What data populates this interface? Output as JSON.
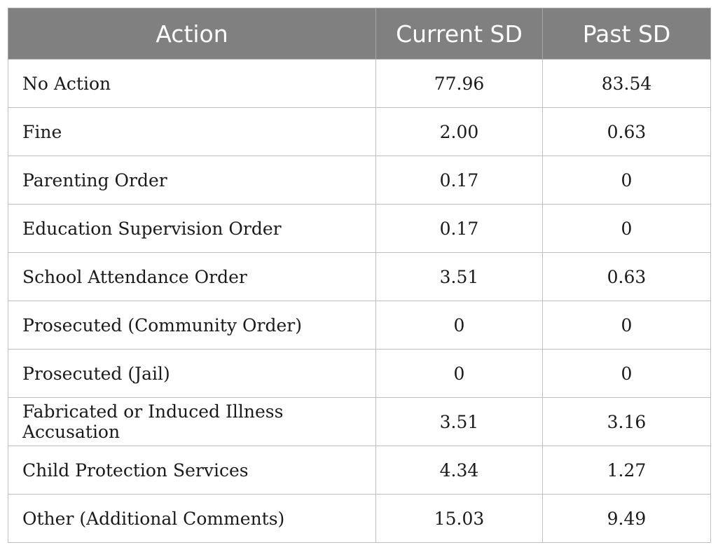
{
  "table": {
    "headers": [
      "Action",
      "Current SD",
      "Past SD"
    ],
    "rows": [
      {
        "action": "No Action",
        "current_sd": "77.96",
        "past_sd": "83.54"
      },
      {
        "action": "Fine",
        "current_sd": "2.00",
        "past_sd": "0.63"
      },
      {
        "action": "Parenting Order",
        "current_sd": "0.17",
        "past_sd": "0"
      },
      {
        "action": "Education Supervision Order",
        "current_sd": "0.17",
        "past_sd": "0"
      },
      {
        "action": "School Attendance Order",
        "current_sd": "3.51",
        "past_sd": "0.63"
      },
      {
        "action": "Prosecuted (Community Order)",
        "current_sd": "0",
        "past_sd": "0"
      },
      {
        "action": "Prosecuted (Jail)",
        "current_sd": "0",
        "past_sd": "0"
      },
      {
        "action": "Fabricated or Induced Illness Accusation",
        "current_sd": "3.51",
        "past_sd": "3.16"
      },
      {
        "action": "Child Protection Services",
        "current_sd": "4.34",
        "past_sd": "1.27"
      },
      {
        "action": "Other (Additional Comments)",
        "current_sd": "15.03",
        "past_sd": "9.49"
      }
    ]
  }
}
